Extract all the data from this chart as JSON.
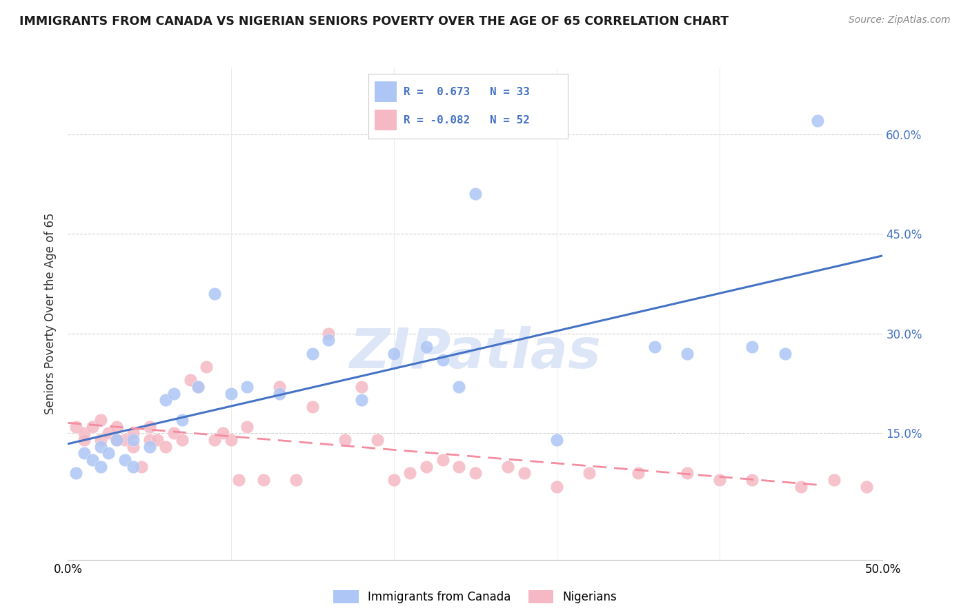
{
  "title": "IMMIGRANTS FROM CANADA VS NIGERIAN SENIORS POVERTY OVER THE AGE OF 65 CORRELATION CHART",
  "source": "Source: ZipAtlas.com",
  "ylabel": "Seniors Poverty Over the Age of 65",
  "xlim": [
    0.0,
    0.5
  ],
  "ylim": [
    -0.04,
    0.7
  ],
  "yticks": [
    0.15,
    0.3,
    0.45,
    0.6
  ],
  "ytick_labels": [
    "15.0%",
    "30.0%",
    "45.0%",
    "60.0%"
  ],
  "xticks": [
    0.0,
    0.1,
    0.2,
    0.3,
    0.4,
    0.5
  ],
  "xtick_labels": [
    "0.0%",
    "",
    "",
    "",
    "",
    "50.0%"
  ],
  "legend_R_blue": " 0.673",
  "legend_N_blue": "33",
  "legend_R_pink": "-0.082",
  "legend_N_pink": "52",
  "blue_color": "#adc6f5",
  "pink_color": "#f5b8c4",
  "line_blue": "#4472c4",
  "line_pink": "#f48ca0",
  "watermark": "ZIPatlas",
  "watermark_color": "#dce6f7",
  "blue_x": [
    0.005,
    0.01,
    0.015,
    0.02,
    0.02,
    0.025,
    0.03,
    0.035,
    0.04,
    0.04,
    0.05,
    0.06,
    0.065,
    0.07,
    0.08,
    0.09,
    0.1,
    0.11,
    0.13,
    0.15,
    0.16,
    0.18,
    0.2,
    0.22,
    0.23,
    0.24,
    0.25,
    0.3,
    0.36,
    0.38,
    0.42,
    0.44,
    0.46
  ],
  "blue_y": [
    0.09,
    0.12,
    0.11,
    0.1,
    0.13,
    0.12,
    0.14,
    0.11,
    0.1,
    0.14,
    0.13,
    0.2,
    0.21,
    0.17,
    0.22,
    0.36,
    0.21,
    0.22,
    0.21,
    0.27,
    0.29,
    0.2,
    0.27,
    0.28,
    0.26,
    0.22,
    0.51,
    0.14,
    0.28,
    0.27,
    0.28,
    0.27,
    0.62
  ],
  "pink_x": [
    0.005,
    0.01,
    0.01,
    0.015,
    0.02,
    0.02,
    0.025,
    0.03,
    0.03,
    0.035,
    0.04,
    0.04,
    0.045,
    0.05,
    0.05,
    0.055,
    0.06,
    0.065,
    0.07,
    0.075,
    0.08,
    0.085,
    0.09,
    0.095,
    0.1,
    0.105,
    0.11,
    0.12,
    0.13,
    0.14,
    0.15,
    0.16,
    0.17,
    0.18,
    0.19,
    0.2,
    0.21,
    0.22,
    0.23,
    0.24,
    0.25,
    0.27,
    0.28,
    0.3,
    0.32,
    0.35,
    0.38,
    0.4,
    0.42,
    0.45,
    0.47,
    0.49
  ],
  "pink_y": [
    0.16,
    0.15,
    0.14,
    0.16,
    0.14,
    0.17,
    0.15,
    0.14,
    0.16,
    0.14,
    0.13,
    0.15,
    0.1,
    0.14,
    0.16,
    0.14,
    0.13,
    0.15,
    0.14,
    0.23,
    0.22,
    0.25,
    0.14,
    0.15,
    0.14,
    0.08,
    0.16,
    0.08,
    0.22,
    0.08,
    0.19,
    0.3,
    0.14,
    0.22,
    0.14,
    0.08,
    0.09,
    0.1,
    0.11,
    0.1,
    0.09,
    0.1,
    0.09,
    0.07,
    0.09,
    0.09,
    0.09,
    0.08,
    0.08,
    0.07,
    0.08,
    0.07
  ]
}
